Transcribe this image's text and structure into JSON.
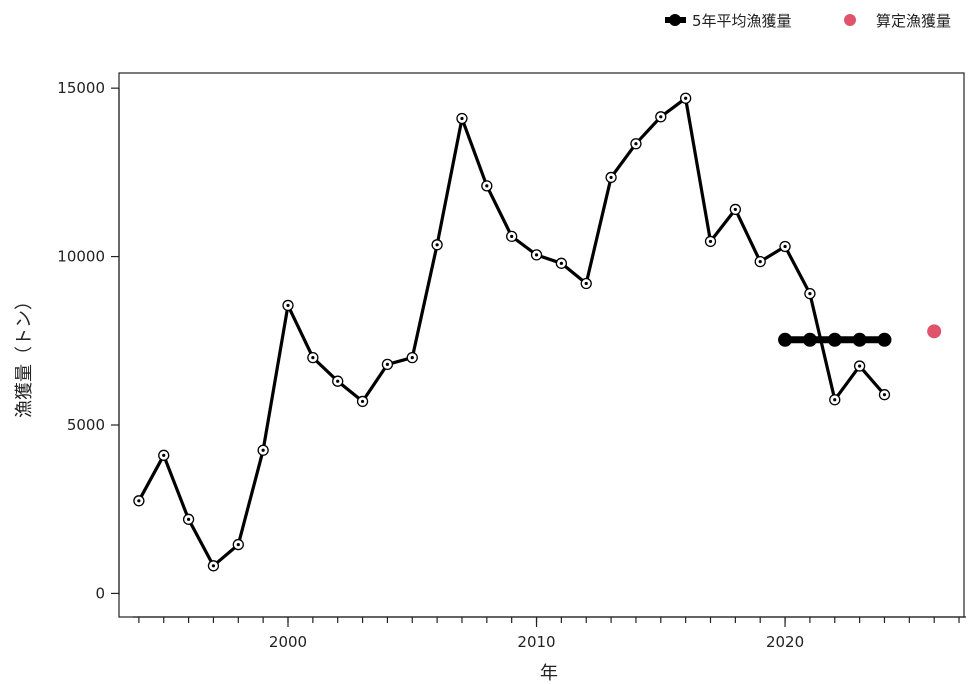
{
  "chart_data": {
    "type": "line",
    "xlabel": "年",
    "ylabel": "漁獲量（トン）",
    "xlim": [
      1993.2,
      2027.2
    ],
    "ylim": [
      -700,
      15450
    ],
    "x_ticks": [
      2000,
      2010,
      2020
    ],
    "x_minor_ticks": [
      1994,
      1995,
      1996,
      1997,
      1998,
      1999,
      2000,
      2001,
      2002,
      2003,
      2004,
      2005,
      2006,
      2007,
      2008,
      2009,
      2010,
      2011,
      2012,
      2013,
      2014,
      2015,
      2016,
      2017,
      2018,
      2019,
      2020,
      2021,
      2022,
      2023,
      2024,
      2025,
      2026,
      2027
    ],
    "y_ticks": [
      0,
      5000,
      10000,
      15000
    ],
    "grid": false,
    "legend_position": "top-right",
    "series": [
      {
        "x": [
          1994,
          1995,
          1996,
          1997,
          1998,
          1999,
          2000,
          2001,
          2002,
          2003,
          2004,
          2005,
          2006,
          2007,
          2008,
          2009,
          2010,
          2011,
          2012,
          2013,
          2014,
          2015,
          2016,
          2017,
          2018,
          2019,
          2020,
          2021,
          2022,
          2023,
          2024
        ],
        "values": [
          2750,
          4100,
          2200,
          820,
          1450,
          4250,
          8550,
          7000,
          6300,
          5700,
          6800,
          7000,
          10350,
          14100,
          12100,
          10600,
          10050,
          9800,
          9200,
          12350,
          13350,
          14150,
          14700,
          10450,
          11400,
          9850,
          10300,
          8900,
          5750,
          6750,
          5900
        ],
        "color": "#000000",
        "marker": "open-circle"
      },
      {
        "name": "5年平均漁獲量",
        "x": [
          2020,
          2021,
          2022,
          2023,
          2024
        ],
        "values": [
          7530,
          7530,
          7530,
          7530,
          7530
        ],
        "color": "#000000",
        "marker": "filled-circle"
      },
      {
        "name": "算定漁獲量",
        "x": [
          2026
        ],
        "values": [
          7780
        ],
        "color": "#df536b",
        "marker": "filled-circle"
      }
    ]
  }
}
